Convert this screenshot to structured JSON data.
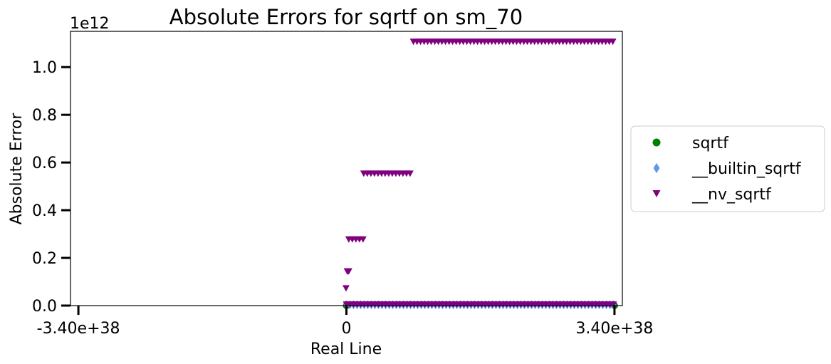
{
  "chart_data": {
    "type": "scatter",
    "title": "Absolute Errors for sqrtf on sm_70",
    "xlabel": "Real Line",
    "ylabel": "Absolute Error",
    "y_offset_label": "1e12",
    "xlim": [
      -3.5e+38,
      3.5e+38
    ],
    "ylim": [
      0,
      1150000000000.0
    ],
    "x_ticks": [
      {
        "value": -3.4e+38,
        "label": "-3.40e+38"
      },
      {
        "value": 0,
        "label": "0"
      },
      {
        "value": 3.4e+38,
        "label": "3.40e+38"
      }
    ],
    "y_ticks": [
      {
        "value": 0,
        "label": "0.0"
      },
      {
        "value": 200000000000.0,
        "label": "0.2"
      },
      {
        "value": 400000000000.0,
        "label": "0.4"
      },
      {
        "value": 600000000000.0,
        "label": "0.6"
      },
      {
        "value": 800000000000.0,
        "label": "0.8"
      },
      {
        "value": 1000000000000.0,
        "label": "1.0"
      }
    ],
    "grid": false,
    "legend_position": "outside-right",
    "series": [
      {
        "name": "sqrtf",
        "marker": "circle",
        "color": "#008000",
        "points": [
          [
            0,
            0
          ],
          [
            3.4e+38,
            0
          ]
        ],
        "segments": []
      },
      {
        "name": "__builtin_sqrtf",
        "marker": "diamond",
        "color": "#6495ED",
        "points": [],
        "segments": [
          {
            "x_start": 0,
            "x_end": 3.4e+38,
            "y": 4000000000.0
          }
        ]
      },
      {
        "name": "__nv_sqrtf",
        "marker": "triangle-down",
        "color": "#800080",
        "points": [
          [
            -5e+35,
            72000000000.0
          ],
          [
            1e+36,
            143000000000.0
          ],
          [
            2e+36,
            143000000000.0
          ],
          [
            3e+36,
            143000000000.0
          ]
        ],
        "segments": [
          {
            "x_start": 3e+36,
            "x_end": 2.2e+37,
            "y": 277000000000.0
          },
          {
            "x_start": 2.2e+37,
            "x_end": 8.5e+37,
            "y": 553000000000.0
          },
          {
            "x_start": 8.5e+37,
            "x_end": 3.4e+38,
            "y": 1106000000000.0
          },
          {
            "x_start": 0,
            "x_end": 3.4e+38,
            "y": 4000000000.0
          }
        ]
      }
    ]
  }
}
